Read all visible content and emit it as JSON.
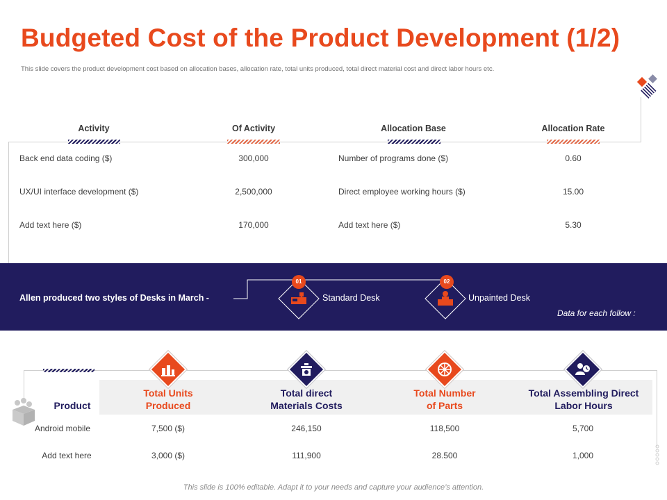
{
  "title": "Budgeted Cost of the Product Development (1/2)",
  "subtitle": "This slide covers the product development cost based on allocation bases, allocation rate, total units produced, total direct material cost and direct labor hours etc.",
  "top_table": {
    "headers": [
      "Activity",
      "Of Activity",
      "Allocation Base",
      "Allocation Rate"
    ],
    "rows": [
      [
        "Back end data coding ($)",
        "300,000",
        "Number of programs done ($)",
        "0.60"
      ],
      [
        "UX/UI interface development ($)",
        "2,500,000",
        "Direct employee working hours ($)",
        "15.00"
      ],
      [
        "Add text here ($)",
        "170,000",
        "Add text here ($)",
        "5.30"
      ]
    ]
  },
  "band": {
    "lead_text": "Allen produced two styles of Desks in March -",
    "styles": [
      {
        "number": "01",
        "label": "Standard Desk",
        "icon": "desk-icon"
      },
      {
        "number": "02",
        "label": "Unpainted Desk",
        "icon": "person-desk-icon"
      }
    ],
    "note": "Data for each follow :"
  },
  "bottom_table": {
    "row_header": "Product",
    "columns": [
      {
        "label_line1": "Total Units",
        "label_line2": "Produced",
        "icon": "factory-icon",
        "color": "#e8491d"
      },
      {
        "label_line1": "Total direct",
        "label_line2": "Materials Costs",
        "icon": "money-box-icon",
        "color": "#211c5e"
      },
      {
        "label_line1": "Total Number",
        "label_line2": "of Parts",
        "icon": "wheel-icon",
        "color": "#e8491d"
      },
      {
        "label_line1": "Total Assembling Direct",
        "label_line2": "Labor Hours",
        "icon": "worker-clock-icon",
        "color": "#211c5e"
      }
    ],
    "rows": [
      {
        "product": "Android mobile",
        "values": [
          "7,500 ($)",
          "246,150",
          "118,500",
          "5,700"
        ]
      },
      {
        "product": "Add text here",
        "values": [
          "3,000 ($)",
          "111,900",
          "28.500",
          "1,000"
        ]
      }
    ]
  },
  "footer": "This slide is 100% editable. Adapt it to your needs and capture your audience’s attention.",
  "colors": {
    "accent": "#e8491d",
    "navy": "#211c5e",
    "hatch_orange": "#e46b4a"
  }
}
